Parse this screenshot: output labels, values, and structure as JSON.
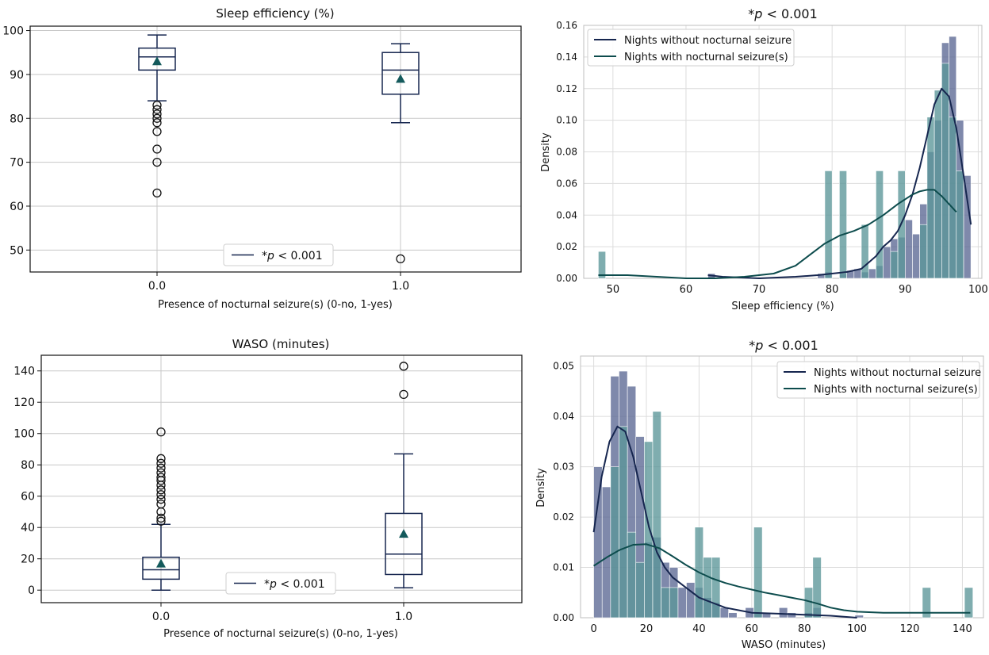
{
  "chart_data": [
    {
      "type": "box",
      "title": "Sleep efficiency (%)",
      "xlabel": "Presence of nocturnal seizure(s) (0-no, 1-yes)",
      "ylabel": "",
      "ylim": [
        45,
        101
      ],
      "yticks": [
        50,
        60,
        70,
        80,
        90,
        100
      ],
      "categories": [
        "0.0",
        "1.0"
      ],
      "boxes": [
        {
          "q1": 91,
          "median": 94,
          "q3": 96,
          "whislo": 84,
          "whishi": 99,
          "mean": 93,
          "fliers": [
            83,
            82,
            81,
            80,
            79,
            77,
            73,
            70,
            63
          ]
        },
        {
          "q1": 85.5,
          "median": 91,
          "q3": 95,
          "whislo": 79,
          "whishi": 97,
          "mean": 89,
          "fliers": [
            48
          ]
        }
      ],
      "legend": "*p < 0.001",
      "legend_prefix": "*",
      "legend_p": "p",
      "legend_rest": " < 0.001"
    },
    {
      "type": "histogram_kde",
      "title": "*p < 0.001",
      "title_prefix": "*",
      "title_p": "p",
      "title_rest": " < 0.001",
      "xlabel": "Sleep efficiency (%)",
      "ylabel": "Density",
      "xlim": [
        46,
        100.5
      ],
      "ylim": [
        0,
        0.16
      ],
      "xticks": [
        50,
        60,
        70,
        80,
        90,
        100
      ],
      "yticks": [
        0.0,
        0.02,
        0.04,
        0.06,
        0.08,
        0.1,
        0.12,
        0.14,
        0.16
      ],
      "ytick_labels": [
        "0.00",
        "0.02",
        "0.04",
        "0.06",
        "0.08",
        "0.10",
        "0.12",
        "0.14",
        "0.16"
      ],
      "bin_width": 1.0,
      "series": [
        {
          "name": "Nights without nocturnal seizure",
          "bars": [
            [
              63,
              0.003
            ],
            [
              78,
              0.003
            ],
            [
              79,
              0.004
            ],
            [
              81,
              0.003
            ],
            [
              82,
              0.005
            ],
            [
              83,
              0.006
            ],
            [
              84,
              0.004
            ],
            [
              85,
              0.006
            ],
            [
              86,
              0.008
            ],
            [
              87,
              0.02
            ],
            [
              88,
              0.025
            ],
            [
              89,
              0.026
            ],
            [
              90,
              0.037
            ],
            [
              91,
              0.028
            ],
            [
              92,
              0.047
            ],
            [
              93,
              0.08
            ],
            [
              94,
              0.1
            ],
            [
              95,
              0.149
            ],
            [
              96,
              0.153
            ],
            [
              97,
              0.1
            ],
            [
              98,
              0.065
            ]
          ],
          "kde": [
            [
              63,
              0.002
            ],
            [
              65,
              0.001
            ],
            [
              70,
              0.0
            ],
            [
              75,
              0.001
            ],
            [
              78,
              0.002
            ],
            [
              80,
              0.003
            ],
            [
              82,
              0.004
            ],
            [
              84,
              0.006
            ],
            [
              85,
              0.01
            ],
            [
              86,
              0.014
            ],
            [
              87,
              0.02
            ],
            [
              88,
              0.024
            ],
            [
              89,
              0.03
            ],
            [
              90,
              0.04
            ],
            [
              91,
              0.053
            ],
            [
              92,
              0.07
            ],
            [
              93,
              0.09
            ],
            [
              94,
              0.11
            ],
            [
              95,
              0.12
            ],
            [
              96,
              0.115
            ],
            [
              97,
              0.095
            ],
            [
              98,
              0.065
            ],
            [
              99,
              0.034
            ]
          ]
        },
        {
          "name": "Nights with nocturnal seizure(s)",
          "bars": [
            [
              48,
              0.017
            ],
            [
              79,
              0.068
            ],
            [
              81,
              0.068
            ],
            [
              84,
              0.034
            ],
            [
              86,
              0.068
            ],
            [
              88,
              0.017
            ],
            [
              89,
              0.068
            ],
            [
              92,
              0.034
            ],
            [
              93,
              0.102
            ],
            [
              94,
              0.119
            ],
            [
              95,
              0.136
            ],
            [
              96,
              0.102
            ],
            [
              97,
              0.068
            ]
          ],
          "kde": [
            [
              48,
              0.002
            ],
            [
              52,
              0.002
            ],
            [
              56,
              0.001
            ],
            [
              60,
              0.0
            ],
            [
              64,
              0.0
            ],
            [
              68,
              0.001
            ],
            [
              72,
              0.003
            ],
            [
              75,
              0.008
            ],
            [
              77,
              0.015
            ],
            [
              79,
              0.022
            ],
            [
              81,
              0.027
            ],
            [
              83,
              0.03
            ],
            [
              85,
              0.034
            ],
            [
              87,
              0.04
            ],
            [
              89,
              0.047
            ],
            [
              91,
              0.053
            ],
            [
              92,
              0.055
            ],
            [
              93,
              0.056
            ],
            [
              94,
              0.056
            ],
            [
              95,
              0.052
            ],
            [
              96,
              0.047
            ],
            [
              97,
              0.042
            ]
          ]
        }
      ],
      "legend_position": "top-left"
    },
    {
      "type": "box",
      "title": "WASO (minutes)",
      "xlabel": "Presence of nocturnal seizure(s) (0-no, 1-yes)",
      "ylabel": "",
      "ylim": [
        -8,
        150
      ],
      "yticks": [
        0,
        20,
        40,
        60,
        80,
        100,
        120,
        140
      ],
      "categories": [
        "0.0",
        "1.0"
      ],
      "boxes": [
        {
          "q1": 7,
          "median": 13,
          "q3": 21,
          "whislo": 0,
          "whishi": 42,
          "mean": 17,
          "fliers": [
            44,
            46,
            50,
            55,
            58,
            61,
            64,
            67,
            70,
            72,
            75,
            78,
            81,
            84,
            101
          ]
        },
        {
          "q1": 10,
          "median": 23,
          "q3": 49,
          "whislo": 1.5,
          "whishi": 87,
          "mean": 36,
          "fliers": [
            125,
            143
          ]
        }
      ],
      "legend": "*p < 0.001",
      "legend_prefix": "*",
      "legend_p": "p",
      "legend_rest": " < 0.001"
    },
    {
      "type": "histogram_kde",
      "title": "*p < 0.001",
      "title_prefix": "*",
      "title_p": "p",
      "title_rest": " < 0.001",
      "xlabel": "WASO (minutes)",
      "ylabel": "Density",
      "xlim": [
        -5,
        148
      ],
      "ylim": [
        0,
        0.052
      ],
      "xticks": [
        0,
        20,
        40,
        60,
        80,
        100,
        120,
        140
      ],
      "yticks": [
        0.0,
        0.01,
        0.02,
        0.03,
        0.04,
        0.05
      ],
      "ytick_labels": [
        "0.00",
        "0.01",
        "0.02",
        "0.03",
        "0.04",
        "0.05"
      ],
      "bin_width": 3.2,
      "series": [
        {
          "name": "Nights without nocturnal seizure",
          "bars": [
            [
              0,
              0.03
            ],
            [
              3.2,
              0.026
            ],
            [
              6.4,
              0.048
            ],
            [
              9.6,
              0.049
            ],
            [
              12.8,
              0.046
            ],
            [
              16,
              0.036
            ],
            [
              19.2,
              0.015
            ],
            [
              22.4,
              0.016
            ],
            [
              25.6,
              0.011
            ],
            [
              28.8,
              0.01
            ],
            [
              32,
              0.006
            ],
            [
              35.2,
              0.007
            ],
            [
              38.4,
              0.006
            ],
            [
              41.6,
              0.004
            ],
            [
              44.8,
              0.003
            ],
            [
              48,
              0.002
            ],
            [
              51.2,
              0.001
            ],
            [
              57.6,
              0.002
            ],
            [
              60.8,
              0.001
            ],
            [
              64,
              0.001
            ],
            [
              70.4,
              0.002
            ],
            [
              73.6,
              0.001
            ],
            [
              80,
              0.001
            ],
            [
              83.2,
              0.002
            ],
            [
              99.2,
              0.0005
            ]
          ],
          "kde": [
            [
              0,
              0.017
            ],
            [
              3,
              0.028
            ],
            [
              6,
              0.035
            ],
            [
              9,
              0.038
            ],
            [
              12,
              0.037
            ],
            [
              15,
              0.032
            ],
            [
              18,
              0.025
            ],
            [
              21,
              0.018
            ],
            [
              24,
              0.013
            ],
            [
              27,
              0.01
            ],
            [
              30,
              0.008
            ],
            [
              35,
              0.006
            ],
            [
              40,
              0.004
            ],
            [
              45,
              0.003
            ],
            [
              50,
              0.002
            ],
            [
              55,
              0.0015
            ],
            [
              60,
              0.001
            ],
            [
              70,
              0.0008
            ],
            [
              80,
              0.0006
            ],
            [
              90,
              0.0004
            ],
            [
              100,
              0.0
            ]
          ]
        },
        {
          "name": "Nights with nocturnal seizure(s)",
          "bars": [
            [
              6.4,
              0.03
            ],
            [
              9.6,
              0.038
            ],
            [
              12.8,
              0.017
            ],
            [
              16,
              0.011
            ],
            [
              19.2,
              0.035
            ],
            [
              22.4,
              0.041
            ],
            [
              25.6,
              0.006
            ],
            [
              28.8,
              0.006
            ],
            [
              38.4,
              0.018
            ],
            [
              41.6,
              0.012
            ],
            [
              44.8,
              0.012
            ],
            [
              60.8,
              0.018
            ],
            [
              80,
              0.006
            ],
            [
              83.2,
              0.012
            ],
            [
              124.8,
              0.006
            ],
            [
              140.8,
              0.006
            ]
          ],
          "kde": [
            [
              0,
              0.0103
            ],
            [
              5,
              0.012
            ],
            [
              10,
              0.0135
            ],
            [
              15,
              0.0145
            ],
            [
              20,
              0.0146
            ],
            [
              25,
              0.0138
            ],
            [
              30,
              0.0122
            ],
            [
              35,
              0.0105
            ],
            [
              40,
              0.009
            ],
            [
              45,
              0.0078
            ],
            [
              50,
              0.0069
            ],
            [
              55,
              0.0062
            ],
            [
              60,
              0.0056
            ],
            [
              65,
              0.005
            ],
            [
              70,
              0.0045
            ],
            [
              75,
              0.004
            ],
            [
              80,
              0.0035
            ],
            [
              85,
              0.0028
            ],
            [
              90,
              0.002
            ],
            [
              95,
              0.0015
            ],
            [
              100,
              0.0012
            ],
            [
              110,
              0.001
            ],
            [
              120,
              0.001
            ],
            [
              130,
              0.001
            ],
            [
              140,
              0.001
            ],
            [
              143,
              0.001
            ]
          ]
        }
      ],
      "legend_position": "top-right"
    }
  ],
  "colors": {
    "navy": "#16264f",
    "teal": "#0d4c4d",
    "bar_without": "#5b6894",
    "bar_with": "#5b9698",
    "mean_marker": "#145a5c",
    "grid": "#c7c7c7",
    "grid_light": "#dcdcdc"
  }
}
